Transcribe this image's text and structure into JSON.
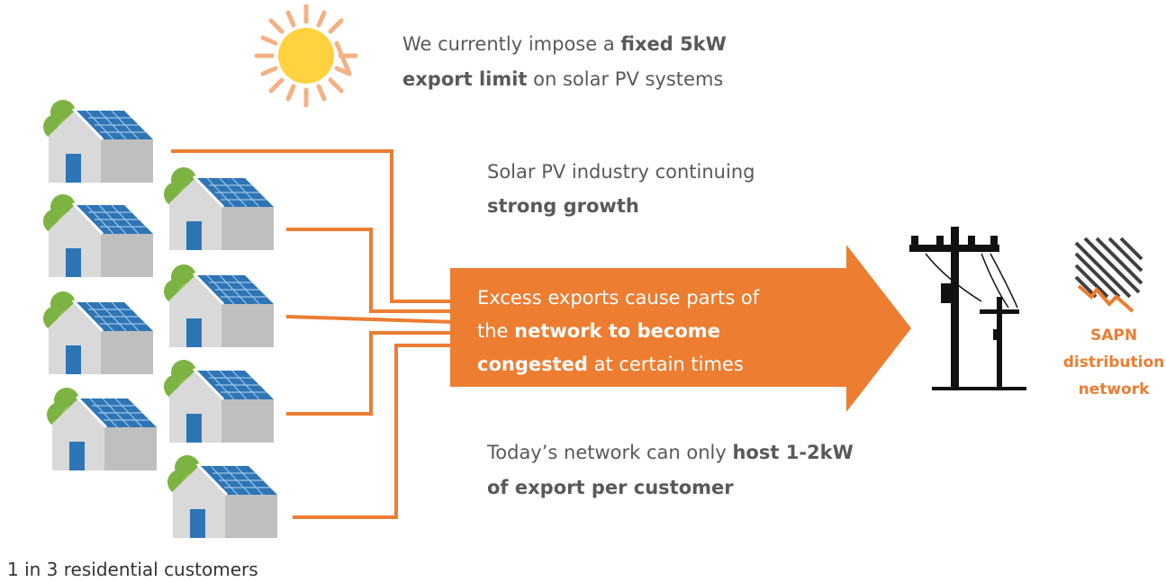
{
  "notes": [
    {
      "lines": [
        [
          {
            "text": "We currently impose a ",
            "bold": false
          },
          {
            "text": "fixed 5kW",
            "bold": true
          }
        ],
        [
          {
            "text": "export limit",
            "bold": true
          },
          {
            "text": " on solar PV systems",
            "bold": false
          }
        ]
      ]
    },
    {
      "lines": [
        [
          {
            "text": "Solar PV industry continuing",
            "bold": false
          }
        ],
        [
          {
            "text": "strong growth",
            "bold": true
          }
        ]
      ]
    },
    {
      "lines": [
        [
          {
            "text": "Today’s network can only ",
            "bold": false
          },
          {
            "text": "host 1-2kW",
            "bold": true
          }
        ],
        [
          {
            "text": "of export per customer",
            "bold": true
          }
        ]
      ]
    }
  ],
  "arrow": {
    "lines": [
      [
        {
          "text": "Excess exports cause parts of",
          "bold": false
        }
      ],
      [
        {
          "text": "the ",
          "bold": false
        },
        {
          "text": "network to become",
          "bold": true
        }
      ],
      [
        {
          "text": "congested",
          "bold": true
        },
        {
          "text": " at certain times",
          "bold": false
        }
      ]
    ]
  },
  "network_label": {
    "lines": [
      "SAPN",
      "distribution",
      "network"
    ]
  },
  "houses_label": "1 in 3 residential customers"
}
